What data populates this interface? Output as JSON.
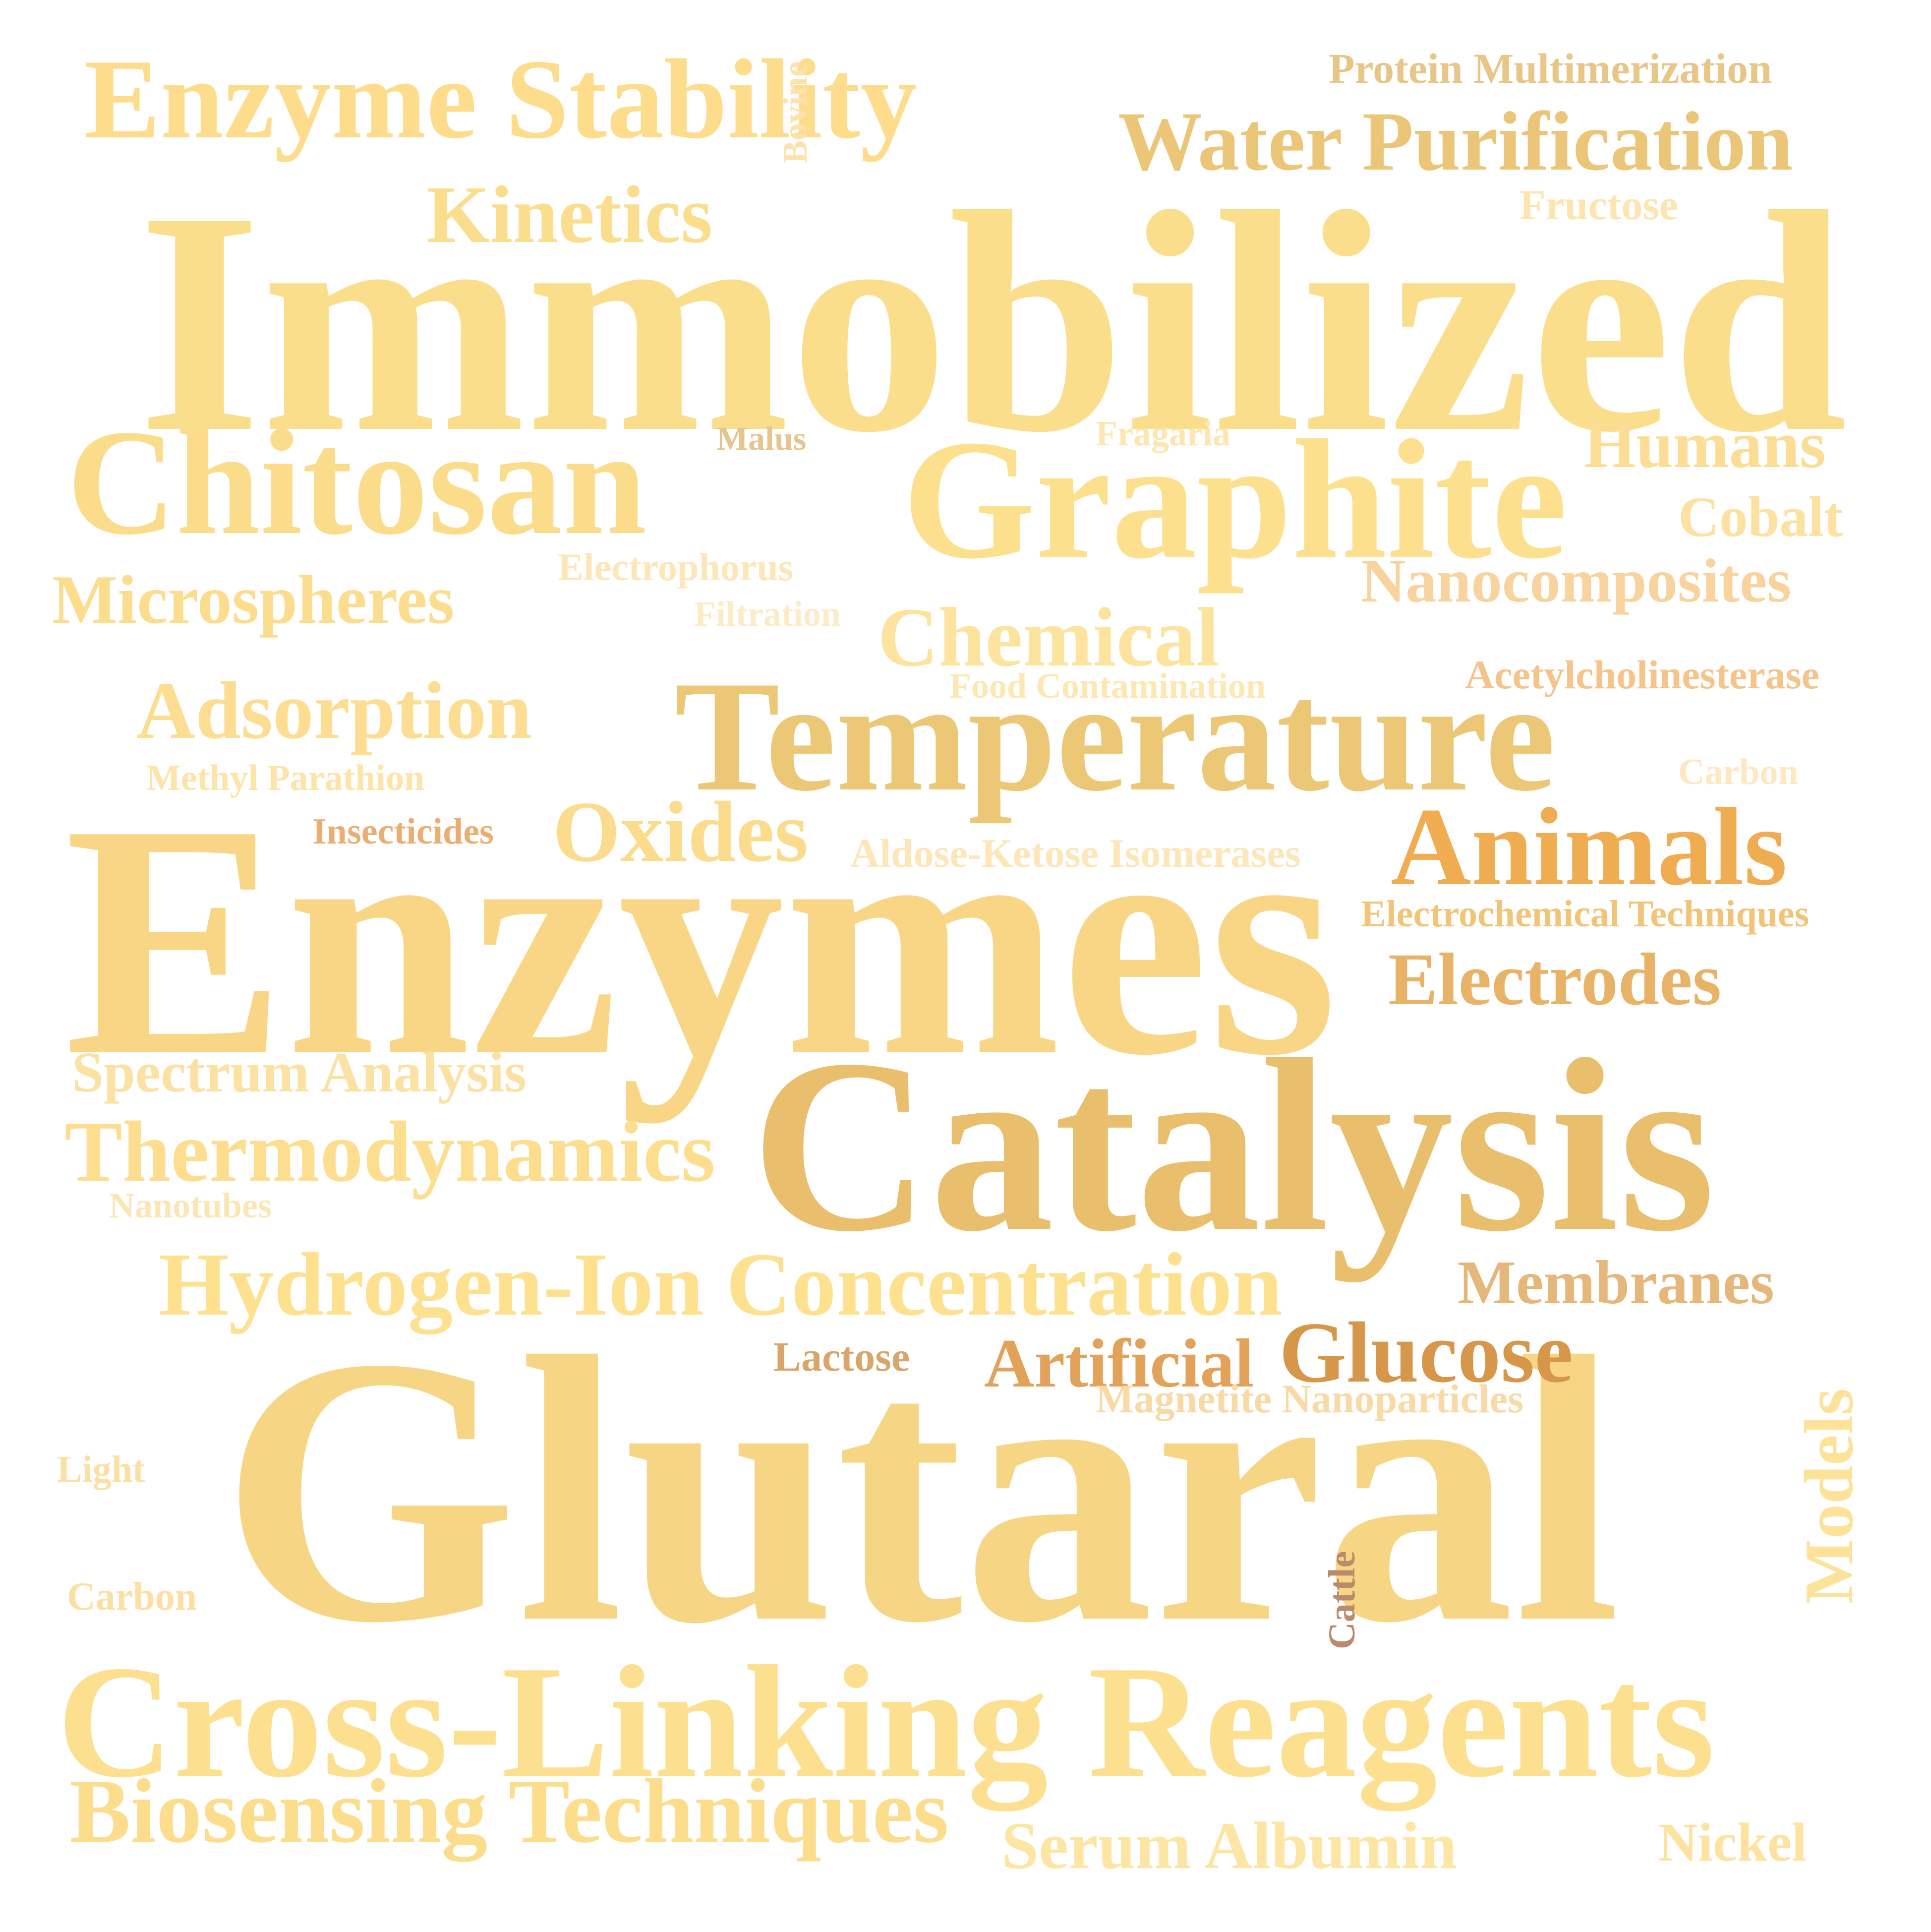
{
  "words": [
    {
      "text": "Immobilized",
      "color": "#fbde8c"
    },
    {
      "text": "Enzymes",
      "color": "#f8d685"
    },
    {
      "text": "Glutaral",
      "color": "#f6d585"
    },
    {
      "text": "Catalysis",
      "color": "#e9be6c"
    },
    {
      "text": "Cross-Linking Reagents",
      "color": "#fde08f"
    },
    {
      "text": "Temperature",
      "color": "#ebc776"
    },
    {
      "text": "Graphite",
      "color": "#fce08e"
    },
    {
      "text": "Chitosan",
      "color": "#fbdc8a"
    },
    {
      "text": "Enzyme Stability",
      "color": "#fddd8c"
    },
    {
      "text": "Water Purification",
      "color": "#ecc678"
    },
    {
      "text": "Hydrogen-Ion Concentration",
      "color": "#fde18f"
    },
    {
      "text": "Thermodynamics",
      "color": "#fcde8e"
    },
    {
      "text": "Biosensing Techniques",
      "color": "#fcdd8c"
    },
    {
      "text": "Animals",
      "color": "#f0ac51"
    },
    {
      "text": "Electrodes",
      "color": "#e8b267"
    },
    {
      "text": "Chemical",
      "color": "#fce49f"
    },
    {
      "text": "Adsorption",
      "color": "#fcdd91"
    },
    {
      "text": "Oxides",
      "color": "#fbdc8c"
    },
    {
      "text": "Kinetics",
      "color": "#fbdd8e"
    },
    {
      "text": "Microspheres",
      "color": "#fcdd8d"
    },
    {
      "text": "Humans",
      "color": "#fcdd95"
    },
    {
      "text": "Nanocomposites",
      "color": "#f9d39d"
    },
    {
      "text": "Glucose",
      "color": "#d7974a"
    },
    {
      "text": "Artificial",
      "color": "#e3a259"
    },
    {
      "text": "Membranes",
      "color": "#e5b77a"
    },
    {
      "text": "Spectrum Analysis",
      "color": "#fbe1a3"
    },
    {
      "text": "Serum Albumin",
      "color": "#fde5a3"
    },
    {
      "text": "Models",
      "color": "#fde39a"
    },
    {
      "text": "Cobalt",
      "color": "#fde1a0"
    },
    {
      "text": "Nickel",
      "color": "#fde2a0"
    },
    {
      "text": "Protein Multimerization",
      "color": "#e8c688"
    },
    {
      "text": "Fructose",
      "color": "#fde5b2"
    },
    {
      "text": "Bovine",
      "color": "#fde3ab"
    },
    {
      "text": "Malus",
      "color": "#e6c58e"
    },
    {
      "text": "Fragaria",
      "color": "#fde6b0"
    },
    {
      "text": "Electrophorus",
      "color": "#fde6b8"
    },
    {
      "text": "Filtration",
      "color": "#fdebc7"
    },
    {
      "text": "Food Contamination",
      "color": "#fde8b4"
    },
    {
      "text": "Acetylcholinesterase",
      "color": "#f5c48a"
    },
    {
      "text": "Methyl Parathion",
      "color": "#fde4a8"
    },
    {
      "text": "Carbon",
      "color": "#fde8c2"
    },
    {
      "text": "Insecticides",
      "color": "#ebae72"
    },
    {
      "text": "Aldose-Ketose Isomerases",
      "color": "#fde6b7"
    },
    {
      "text": "Electrochemical Techniques",
      "color": "#f1c478"
    },
    {
      "text": "Nanotubes",
      "color": "#fde6b6"
    },
    {
      "text": "Lactose",
      "color": "#d8a66a"
    },
    {
      "text": "Magnetite Nanoparticles",
      "color": "#f9d9a5"
    },
    {
      "text": "Light",
      "color": "#fbe0a4"
    },
    {
      "text": "Carbon",
      "color": "#fcdfa2"
    },
    {
      "text": "Cattle",
      "color": "#bb8a6a"
    }
  ]
}
